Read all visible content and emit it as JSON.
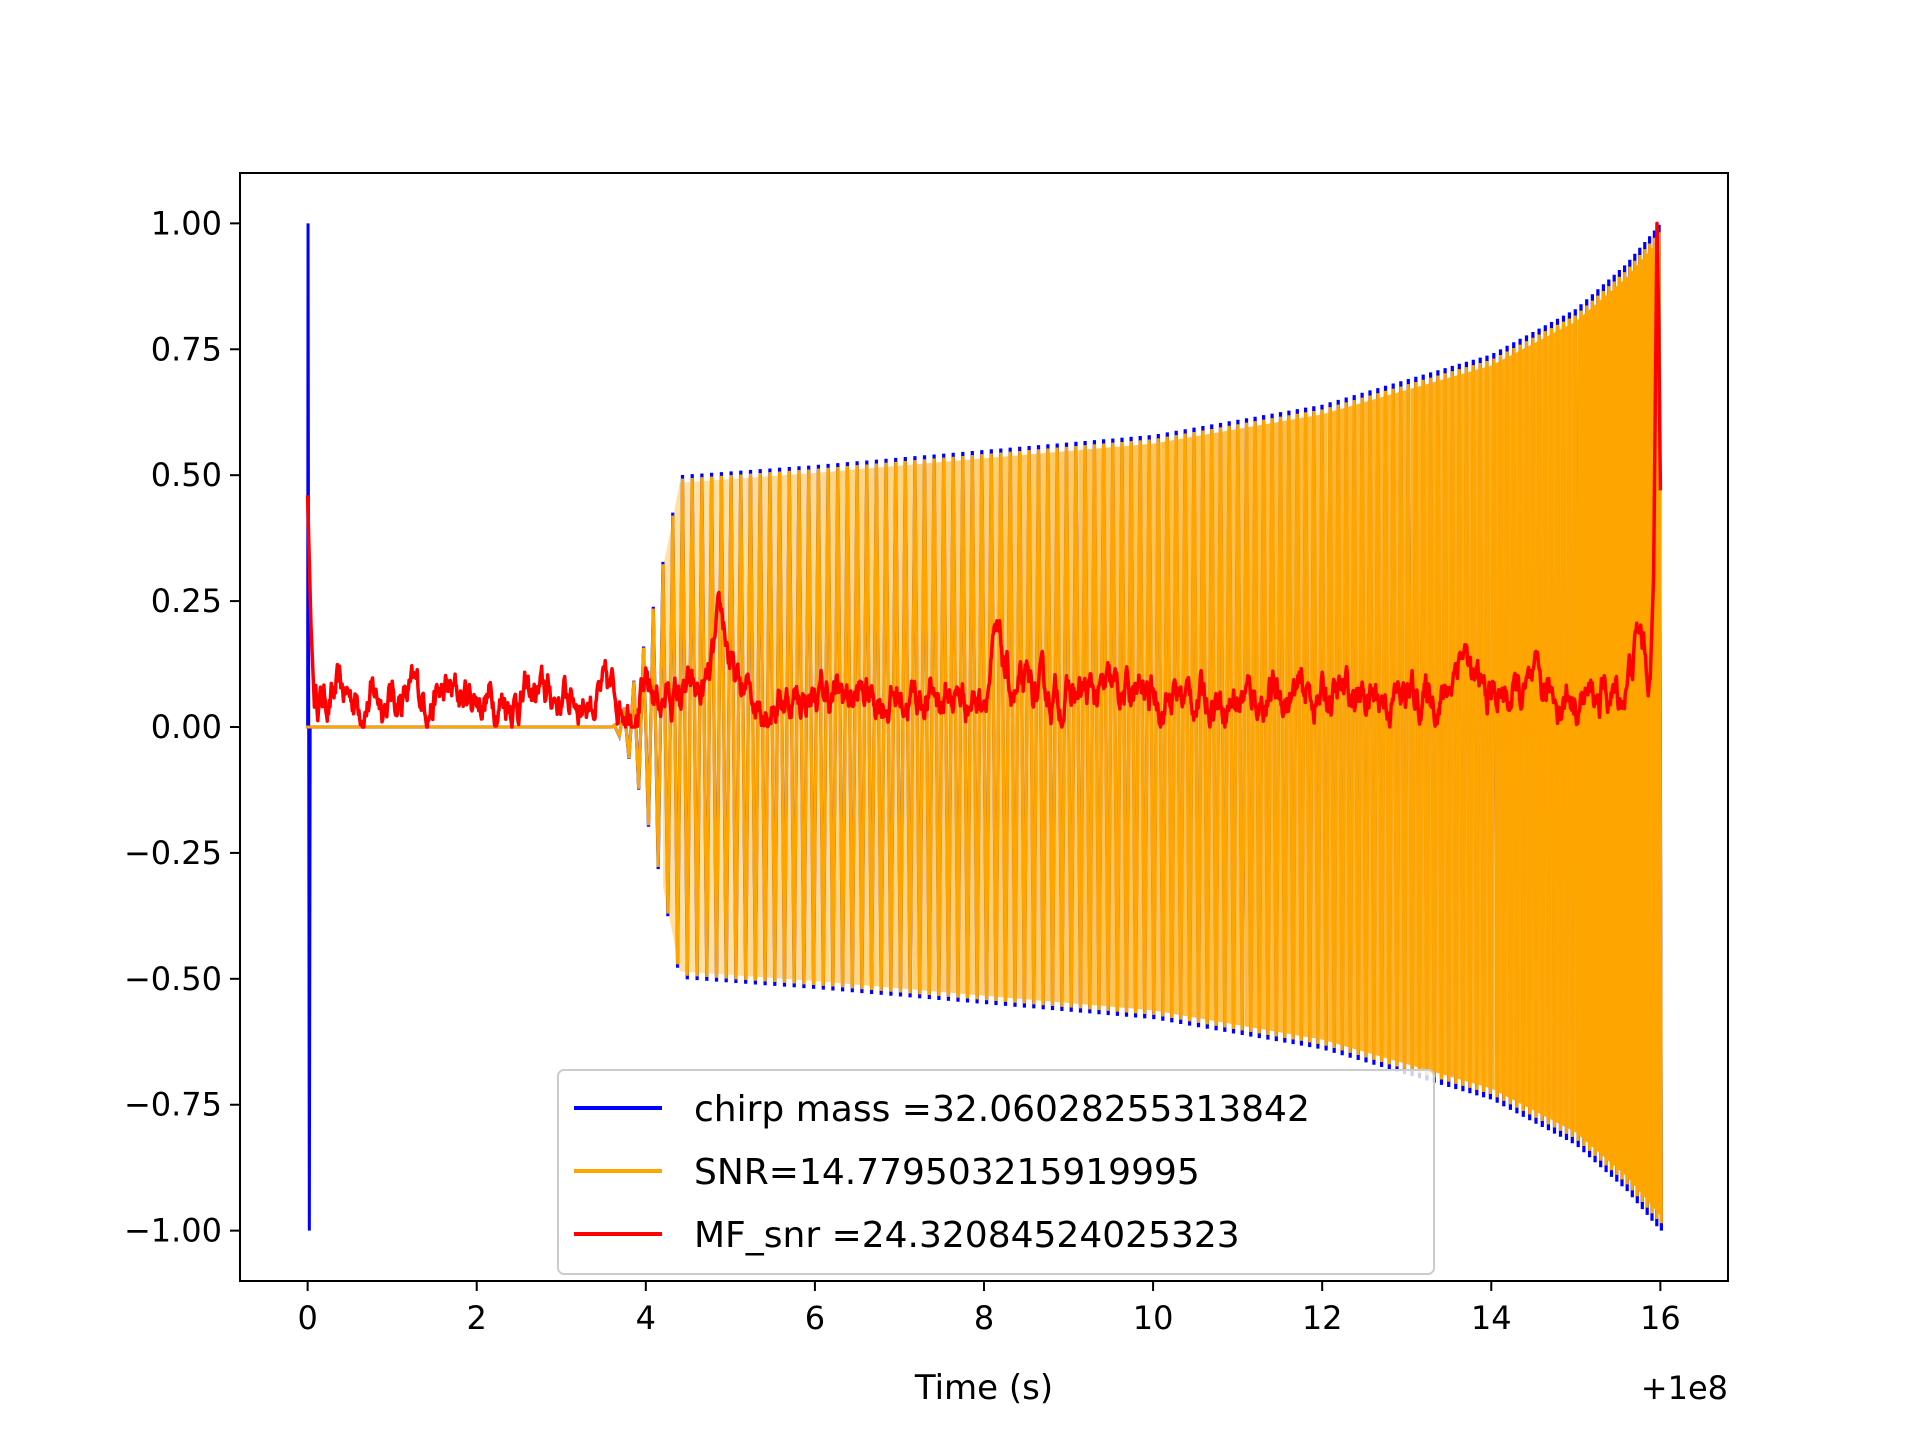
{
  "chart_data": {
    "type": "line",
    "title": "",
    "xlabel": "Time (s)",
    "ylabel": "",
    "x_offset_label": "+1e8",
    "xlim": [
      -0.8,
      16.8
    ],
    "ylim": [
      -1.1,
      1.1
    ],
    "x_ticks": [
      0,
      2,
      4,
      6,
      8,
      10,
      12,
      14,
      16
    ],
    "x_tick_labels": [
      "0",
      "2",
      "4",
      "6",
      "8",
      "10",
      "12",
      "14",
      "16"
    ],
    "y_ticks": [
      1.0,
      0.75,
      0.5,
      0.25,
      0.0,
      -0.25,
      -0.5,
      -0.75,
      -1.0
    ],
    "y_tick_labels": [
      "1.00",
      "0.75",
      "0.50",
      "0.25",
      "0.00",
      "−0.25",
      "−0.50",
      "−0.75",
      "−1.00"
    ],
    "grid": false,
    "legend_position": "lower-center",
    "series": [
      {
        "name": "chirp mass =32.06028255313842",
        "color": "#0000ff",
        "description": "normalized template: spike from 1 to -1 at t=0, then chirp signal starting ~3.6 s growing to envelope 0.5 by ~4.4 s and rising to 1.0 at ~16 s",
        "spike_t": 0.0,
        "onset_t": 3.6,
        "plateau_t": 4.4,
        "end_t": 16.0,
        "envelope": [
          {
            "t": 4.4,
            "amp": 0.5
          },
          {
            "t": 6.0,
            "amp": 0.52
          },
          {
            "t": 8.0,
            "amp": 0.55
          },
          {
            "t": 10.0,
            "amp": 0.58
          },
          {
            "t": 12.0,
            "amp": 0.64
          },
          {
            "t": 14.0,
            "amp": 0.74
          },
          {
            "t": 15.0,
            "amp": 0.83
          },
          {
            "t": 15.6,
            "amp": 0.92
          },
          {
            "t": 16.0,
            "amp": 1.0
          }
        ]
      },
      {
        "name": "SNR=14.779503215919995",
        "color": "#ffa500",
        "description": "data signal, near zero until ~3.6 s then chirp filling envelope up to ~1.0 at 16 s"
      },
      {
        "name": "MF_snr =24.32084524025323",
        "color": "#ff0000",
        "description": "matched filter SNR: starts 0.46 at t=0, drops to noisy baseline ~0.05 (0 to 0.15) with peaks ~0.19 at 4.9 s and ~0.16 at 8.1 s, 13.6 s, 15.7 s, spikes to 1.0 at ~16 s, ends ~0.47",
        "start_value": 0.46,
        "baseline": 0.06,
        "peaks": [
          {
            "t": 4.9,
            "v": 0.19
          },
          {
            "t": 8.15,
            "v": 0.15
          },
          {
            "t": 13.65,
            "v": 0.16
          },
          {
            "t": 15.75,
            "v": 0.18
          },
          {
            "t": 15.95,
            "v": 1.0
          }
        ],
        "end_value": 0.47
      }
    ]
  }
}
